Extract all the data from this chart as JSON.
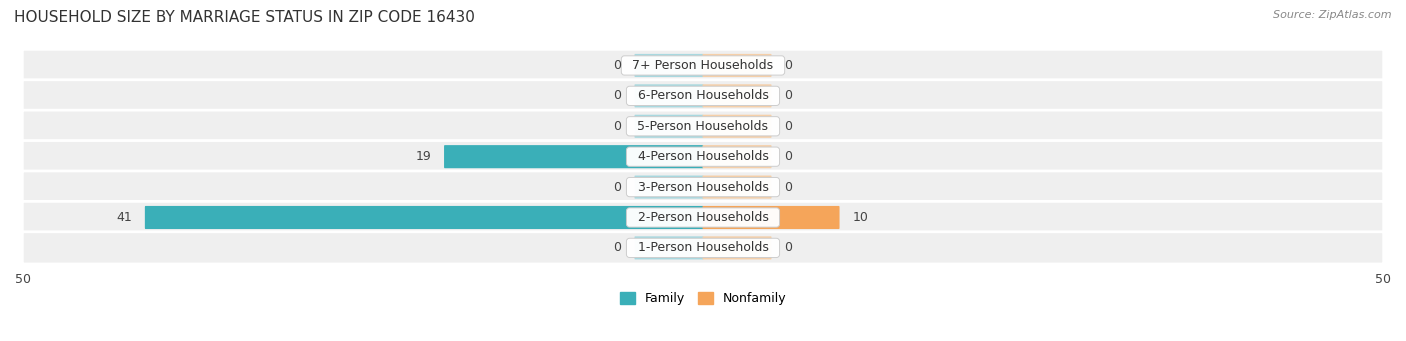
{
  "title": "HOUSEHOLD SIZE BY MARRIAGE STATUS IN ZIP CODE 16430",
  "source": "Source: ZipAtlas.com",
  "categories": [
    "7+ Person Households",
    "6-Person Households",
    "5-Person Households",
    "4-Person Households",
    "3-Person Households",
    "2-Person Households",
    "1-Person Households"
  ],
  "family_values": [
    0,
    0,
    0,
    19,
    0,
    41,
    0
  ],
  "nonfamily_values": [
    0,
    0,
    0,
    0,
    0,
    10,
    0
  ],
  "family_color": "#3AAFB8",
  "nonfamily_color": "#F5A55A",
  "family_color_light": "#A8D8DF",
  "nonfamily_color_light": "#F5CFA8",
  "row_bg_color": "#EFEFEF",
  "row_bg_edge": "#DCDCDC",
  "xlim": 50,
  "stub_size": 5,
  "title_fontsize": 11,
  "label_fontsize": 9,
  "tick_fontsize": 9,
  "source_fontsize": 8
}
